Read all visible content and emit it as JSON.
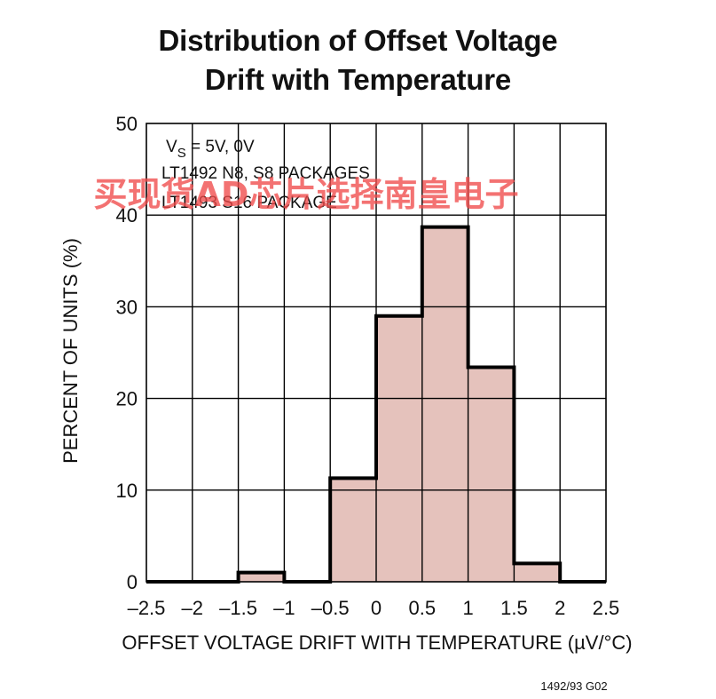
{
  "title_line1": "Distribution of Offset Voltage",
  "title_line2": "Drift with Temperature",
  "annotations": [
    "V_S = 5V, 0V",
    "LT1492 N8, S8 PACKAGES",
    "LT1493 S16 PACKAGE"
  ],
  "annotation_vs": {
    "main": "V",
    "sub": "S",
    "rest": " = 5V, 0V"
  },
  "figure_id": "1492/93 G02",
  "watermark": "买现货AD芯片选择南皇电子",
  "colors": {
    "bar_fill": "#e5c2bc",
    "outline": "#000000",
    "grid": "#000000",
    "watermark": "#f04a4a"
  },
  "chart_data": {
    "type": "bar",
    "title": "Distribution of Offset Voltage Drift with Temperature",
    "xlabel": "OFFSET VOLTAGE DRIFT WITH TEMPERATURE (µV/°C)",
    "ylabel": "PERCENT OF UNITS (%)",
    "xlim": [
      -2.5,
      2.5
    ],
    "ylim": [
      0,
      50
    ],
    "x_ticks": [
      -2.5,
      -2,
      -1.5,
      -1,
      -0.5,
      0,
      0.5,
      1,
      1.5,
      2,
      2.5
    ],
    "x_tick_labels": [
      "–2.5",
      "–2",
      "–1.5",
      "–1",
      "–0.5",
      "0",
      "0.5",
      "1",
      "1.5",
      "2",
      "2.5"
    ],
    "y_ticks": [
      0,
      10,
      20,
      30,
      40,
      50
    ],
    "y_tick_labels": [
      "0",
      "10",
      "20",
      "30",
      "40",
      "50"
    ],
    "grid": true,
    "bins": [
      {
        "x0": -2.5,
        "x1": -2.0,
        "value": 0
      },
      {
        "x0": -2.0,
        "x1": -1.5,
        "value": 0
      },
      {
        "x0": -1.5,
        "x1": -1.0,
        "value": 1
      },
      {
        "x0": -1.0,
        "x1": -0.5,
        "value": 0
      },
      {
        "x0": -0.5,
        "x1": 0.0,
        "value": 11.3
      },
      {
        "x0": 0.0,
        "x1": 0.5,
        "value": 29
      },
      {
        "x0": 0.5,
        "x1": 1.0,
        "value": 38.7
      },
      {
        "x0": 1.0,
        "x1": 1.5,
        "value": 23.4
      },
      {
        "x0": 1.5,
        "x1": 2.0,
        "value": 2
      },
      {
        "x0": 2.0,
        "x1": 2.5,
        "value": 0
      }
    ]
  }
}
